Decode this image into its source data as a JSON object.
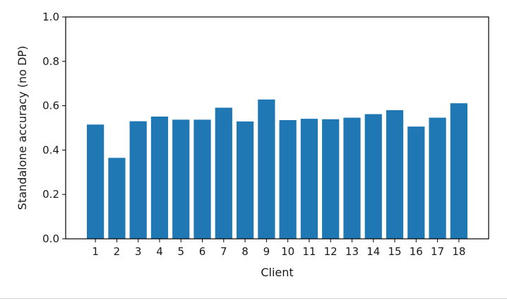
{
  "chart_data": {
    "type": "bar",
    "title": "",
    "xlabel": "Client",
    "ylabel": "Standalone accuracy (no DP)",
    "ylim": [
      0,
      1.0
    ],
    "yticks": [
      0.0,
      0.2,
      0.4,
      0.6,
      0.8,
      1.0
    ],
    "ytick_labels": [
      "0.0",
      "0.2",
      "0.4",
      "0.6",
      "0.8",
      "1.0"
    ],
    "categories": [
      "1",
      "2",
      "3",
      "4",
      "5",
      "6",
      "7",
      "8",
      "9",
      "10",
      "11",
      "12",
      "13",
      "14",
      "15",
      "16",
      "17",
      "18"
    ],
    "values": [
      0.515,
      0.365,
      0.53,
      0.551,
      0.537,
      0.537,
      0.591,
      0.529,
      0.628,
      0.535,
      0.541,
      0.539,
      0.546,
      0.562,
      0.58,
      0.506,
      0.546,
      0.611
    ],
    "bar_color": "#1f77b4",
    "grid": false
  }
}
